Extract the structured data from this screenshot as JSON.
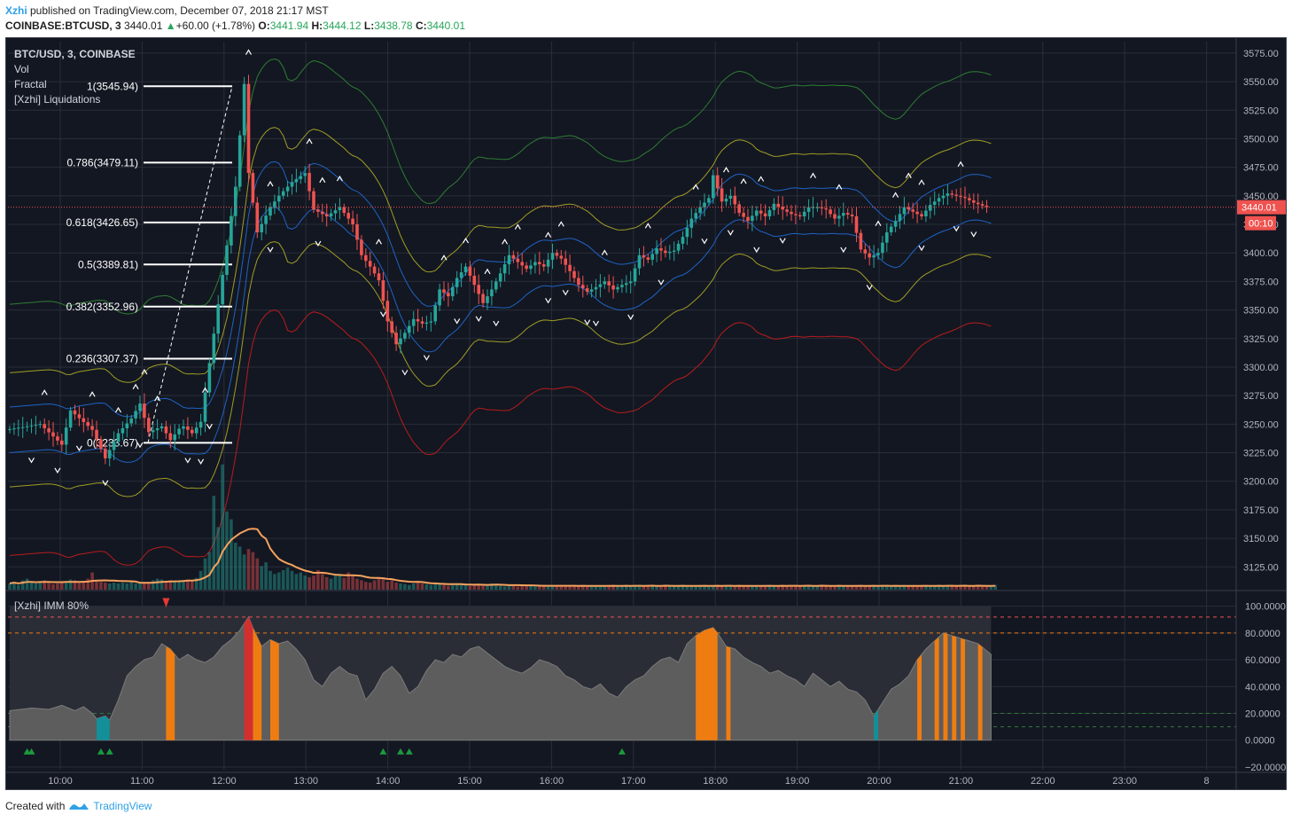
{
  "header": {
    "user": "Xzhi",
    "published_text": " published on TradingView.com, December 07, 2018 21:17 MST"
  },
  "symbol_bar": {
    "symbol": "COINBASE:BTCUSD, 3",
    "last": "3440.01",
    "change": "+60.00 (+1.78%)",
    "o_label": "O:",
    "o_value": "3441.94",
    "h_label": "H:",
    "h_value": "3444.12",
    "l_label": "L:",
    "l_value": "3438.78",
    "c_label": "C:",
    "c_value": "3440.01"
  },
  "legend": {
    "title": "BTC/USD, 3, COINBASE",
    "items": [
      "Vol",
      "Fractal",
      "[Xzhi] Liquidations"
    ]
  },
  "indicator_label": "[Xzhi] IMM 80%",
  "footer": {
    "created_with": "Created with",
    "brand": "TradingView"
  },
  "colors": {
    "background": "#131722",
    "up_candle": "#26a69a",
    "down_candle": "#ef5350",
    "outer_band_upper": "#2e7d32",
    "outer_band_lower": "#b71c1c",
    "middle_band": "#9e9d24",
    "inner_band": "#1e63c4",
    "volume_ma": "#f5a25d",
    "imm_fill": "#5d5d5d",
    "imm_high": "#ef7c11",
    "imm_extreme": "#d32f2f",
    "imm_low": "#138f9a"
  },
  "chart_data": [
    {
      "type": "candlestick",
      "title": "BTC/USD, 3, COINBASE",
      "ylim": [
        3105,
        3585
      ],
      "y_ticks": [
        3125,
        3150,
        3175,
        3200,
        3225,
        3250,
        3275,
        3300,
        3325,
        3350,
        3375,
        3400,
        3425,
        3450,
        3475,
        3500,
        3525,
        3550,
        3575
      ],
      "y_tick_labels": [
        "3125.00",
        "3150.00",
        "3175.00",
        "3200.00",
        "3225.00",
        "3250.00",
        "3275.00",
        "3300.00",
        "3325.00",
        "3350.00",
        "3375.00",
        "3400.00",
        "3425.00",
        "3450.00",
        "3475.00",
        "3500.00",
        "3525.00",
        "3550.00",
        "3575.00"
      ],
      "x_tick_labels": [
        "10:00",
        "11:00",
        "12:00",
        "13:00",
        "14:00",
        "15:00",
        "16:00",
        "17:00",
        "18:00",
        "19:00",
        "20:00",
        "21:00",
        "22:00",
        "23:00",
        "8"
      ],
      "last_price": 3440.01,
      "last_price_label": "3440.01",
      "countdown_label": "00:10",
      "fib_levels": [
        {
          "label": "1(3545.94)",
          "price": 3545.94
        },
        {
          "label": "0.786(3479.11)",
          "price": 3479.11
        },
        {
          "label": "0.618(3426.65)",
          "price": 3426.65
        },
        {
          "label": "0.5(3389.81)",
          "price": 3389.81
        },
        {
          "label": "0.382(3352.96)",
          "price": 3352.96
        },
        {
          "label": "0.236(3307.37)",
          "price": 3307.37
        },
        {
          "label": "0(3233.67)",
          "price": 3233.67
        }
      ],
      "price_path": [
        [
          0,
          3245
        ],
        [
          8,
          3250
        ],
        [
          13,
          3232
        ],
        [
          15,
          3262
        ],
        [
          20,
          3245
        ],
        [
          23,
          3220
        ],
        [
          26,
          3242
        ],
        [
          29,
          3255
        ],
        [
          31,
          3268
        ],
        [
          33,
          3243
        ],
        [
          36,
          3248
        ],
        [
          38,
          3236
        ],
        [
          40,
          3246
        ],
        [
          41,
          3248
        ],
        [
          43,
          3242
        ],
        [
          45,
          3252
        ],
        [
          53,
          3458
        ],
        [
          55,
          3548
        ],
        [
          56,
          3470
        ],
        [
          58,
          3418
        ],
        [
          61,
          3440
        ],
        [
          63,
          3450
        ],
        [
          66,
          3462
        ],
        [
          69,
          3470
        ],
        [
          71,
          3438
        ],
        [
          74,
          3432
        ],
        [
          77,
          3440
        ],
        [
          80,
          3425
        ],
        [
          82,
          3398
        ],
        [
          84,
          3388
        ],
        [
          86,
          3376
        ],
        [
          88,
          3340
        ],
        [
          90,
          3320
        ],
        [
          92,
          3330
        ],
        [
          94,
          3342
        ],
        [
          96,
          3338
        ],
        [
          98,
          3340
        ],
        [
          100,
          3368
        ],
        [
          102,
          3362
        ],
        [
          104,
          3378
        ],
        [
          106,
          3388
        ],
        [
          108,
          3372
        ],
        [
          110,
          3356
        ],
        [
          112,
          3368
        ],
        [
          114,
          3382
        ],
        [
          116,
          3398
        ],
        [
          118,
          3392
        ],
        [
          120,
          3386
        ],
        [
          122,
          3392
        ],
        [
          124,
          3388
        ],
        [
          126,
          3400
        ],
        [
          128,
          3395
        ],
        [
          130,
          3384
        ],
        [
          132,
          3372
        ],
        [
          134,
          3366
        ],
        [
          136,
          3370
        ],
        [
          138,
          3375
        ],
        [
          140,
          3368
        ],
        [
          142,
          3372
        ],
        [
          144,
          3375
        ],
        [
          146,
          3398
        ],
        [
          148,
          3394
        ],
        [
          150,
          3404
        ],
        [
          152,
          3400
        ],
        [
          154,
          3402
        ],
        [
          156,
          3414
        ],
        [
          158,
          3430
        ],
        [
          160,
          3440
        ],
        [
          162,
          3448
        ],
        [
          163,
          3468
        ],
        [
          165,
          3445
        ],
        [
          167,
          3450
        ],
        [
          169,
          3435
        ],
        [
          171,
          3428
        ],
        [
          173,
          3437
        ],
        [
          175,
          3432
        ],
        [
          177,
          3443
        ],
        [
          179,
          3438
        ],
        [
          181,
          3434
        ],
        [
          183,
          3432
        ],
        [
          185,
          3440
        ],
        [
          187,
          3440
        ],
        [
          189,
          3438
        ],
        [
          191,
          3430
        ],
        [
          193,
          3435
        ],
        [
          195,
          3432
        ],
        [
          197,
          3403
        ],
        [
          199,
          3396
        ],
        [
          201,
          3400
        ],
        [
          203,
          3418
        ],
        [
          205,
          3428
        ],
        [
          207,
          3440
        ],
        [
          209,
          3436
        ],
        [
          211,
          3432
        ],
        [
          213,
          3442
        ],
        [
          215,
          3448
        ],
        [
          217,
          3452
        ],
        [
          219,
          3450
        ],
        [
          221,
          3448
        ],
        [
          223,
          3444
        ],
        [
          226,
          3440.01
        ]
      ],
      "fractals": {
        "up_bars": [
          8,
          19,
          25,
          29,
          31,
          34,
          45,
          55,
          60,
          69,
          72,
          76,
          85,
          100,
          105,
          110,
          114,
          117,
          124,
          127,
          137,
          147,
          158,
          165,
          169,
          173,
          185,
          191,
          200,
          204,
          207,
          210,
          219
        ],
        "down_bars": [
          5,
          11,
          16,
          22,
          30,
          41,
          44,
          46,
          60,
          71,
          86,
          91,
          96,
          103,
          108,
          112,
          124,
          128,
          133,
          135,
          143,
          150,
          160,
          166,
          172,
          178,
          192,
          198,
          210,
          218,
          222
        ]
      },
      "volume": {
        "values": [
          8,
          10,
          6,
          12,
          14,
          9,
          8,
          11,
          12,
          9,
          7,
          8,
          10,
          9,
          13,
          12,
          9,
          11,
          14,
          22,
          12,
          10,
          9,
          8,
          9,
          8,
          9,
          8,
          10,
          8,
          8,
          9,
          10,
          12,
          14,
          13,
          11,
          12,
          10,
          11,
          12,
          13,
          11,
          15,
          24,
          40,
          48,
          120,
          80,
          160,
          100,
          90,
          60,
          55,
          45,
          52,
          48,
          40,
          30,
          35,
          24,
          20,
          22,
          25,
          28,
          24,
          20,
          22,
          18,
          16,
          18,
          25,
          20,
          16,
          14,
          18,
          20,
          15,
          22,
          18,
          14,
          12,
          10,
          9,
          12,
          15,
          14,
          10,
          12,
          9,
          8,
          7,
          6,
          8,
          10,
          8,
          7,
          6,
          8,
          7,
          6,
          5,
          6,
          7,
          8,
          6,
          5,
          6,
          7,
          5,
          6,
          8,
          7,
          5,
          4,
          5,
          6,
          4,
          5,
          6,
          5,
          4,
          5,
          6,
          5,
          4,
          5,
          6,
          4,
          5,
          6,
          4,
          5,
          4,
          6,
          5,
          4,
          5,
          6,
          5,
          4,
          5,
          6,
          4,
          5,
          6,
          4,
          5,
          6,
          4,
          5,
          6,
          4,
          5,
          4,
          6,
          5,
          4,
          5,
          6,
          5,
          4,
          5,
          6,
          4,
          5,
          6,
          4,
          5,
          4,
          6,
          5,
          4,
          5,
          6,
          5,
          4,
          5,
          6,
          4,
          5,
          6,
          4,
          5,
          6,
          4,
          5,
          6,
          4,
          5,
          4,
          6,
          5,
          4,
          5,
          6,
          5,
          4,
          5,
          6,
          4,
          5,
          6,
          4,
          5,
          4,
          6,
          5,
          4,
          5,
          6,
          5,
          4,
          5,
          6,
          4,
          5,
          6,
          4,
          5,
          6,
          4,
          5,
          6,
          4,
          5,
          4,
          6
        ]
      }
    },
    {
      "type": "area",
      "title": "[Xzhi] IMM 80%",
      "ylim": [
        -22,
        107
      ],
      "y_ticks": [
        -20,
        0,
        20,
        40,
        60,
        80,
        100
      ],
      "y_tick_labels": [
        "−20.0000",
        "0.0000",
        "20.0000",
        "40.0000",
        "60.0000",
        "80.0000",
        "100.0000"
      ],
      "upper_threshold": 80,
      "lower_threshold": 20,
      "values": [
        [
          0,
          22
        ],
        [
          5,
          24
        ],
        [
          9,
          23
        ],
        [
          12,
          26
        ],
        [
          15,
          22
        ],
        [
          17,
          25
        ],
        [
          19,
          20
        ],
        [
          20,
          16
        ],
        [
          22,
          18
        ],
        [
          23,
          15
        ],
        [
          25,
          30
        ],
        [
          27,
          48
        ],
        [
          29,
          55
        ],
        [
          31,
          60
        ],
        [
          33,
          62
        ],
        [
          35,
          72
        ],
        [
          37,
          68
        ],
        [
          39,
          60
        ],
        [
          41,
          64
        ],
        [
          43,
          60
        ],
        [
          45,
          58
        ],
        [
          47,
          62
        ],
        [
          49,
          70
        ],
        [
          51,
          75
        ],
        [
          53,
          82
        ],
        [
          55,
          92
        ],
        [
          56,
          84
        ],
        [
          58,
          70
        ],
        [
          60,
          75
        ],
        [
          62,
          72
        ],
        [
          64,
          74
        ],
        [
          66,
          68
        ],
        [
          68,
          60
        ],
        [
          70,
          45
        ],
        [
          72,
          40
        ],
        [
          74,
          50
        ],
        [
          76,
          55
        ],
        [
          78,
          50
        ],
        [
          80,
          48
        ],
        [
          82,
          30
        ],
        [
          84,
          38
        ],
        [
          86,
          50
        ],
        [
          88,
          55
        ],
        [
          90,
          48
        ],
        [
          92,
          35
        ],
        [
          94,
          40
        ],
        [
          96,
          52
        ],
        [
          98,
          60
        ],
        [
          100,
          58
        ],
        [
          102,
          64
        ],
        [
          104,
          62
        ],
        [
          106,
          68
        ],
        [
          108,
          70
        ],
        [
          110,
          65
        ],
        [
          112,
          60
        ],
        [
          114,
          55
        ],
        [
          116,
          52
        ],
        [
          118,
          50
        ],
        [
          120,
          54
        ],
        [
          122,
          60
        ],
        [
          124,
          58
        ],
        [
          126,
          55
        ],
        [
          128,
          48
        ],
        [
          130,
          45
        ],
        [
          132,
          40
        ],
        [
          134,
          38
        ],
        [
          136,
          42
        ],
        [
          138,
          35
        ],
        [
          140,
          32
        ],
        [
          142,
          40
        ],
        [
          144,
          45
        ],
        [
          146,
          48
        ],
        [
          148,
          55
        ],
        [
          150,
          60
        ],
        [
          152,
          62
        ],
        [
          154,
          58
        ],
        [
          156,
          72
        ],
        [
          158,
          78
        ],
        [
          160,
          82
        ],
        [
          162,
          84
        ],
        [
          163,
          80
        ],
        [
          165,
          70
        ],
        [
          167,
          68
        ],
        [
          169,
          62
        ],
        [
          171,
          58
        ],
        [
          173,
          55
        ],
        [
          175,
          50
        ],
        [
          177,
          52
        ],
        [
          179,
          48
        ],
        [
          181,
          45
        ],
        [
          183,
          40
        ],
        [
          185,
          50
        ],
        [
          187,
          45
        ],
        [
          189,
          40
        ],
        [
          191,
          44
        ],
        [
          193,
          38
        ],
        [
          195,
          36
        ],
        [
          197,
          30
        ],
        [
          199,
          18
        ],
        [
          201,
          28
        ],
        [
          203,
          38
        ],
        [
          205,
          42
        ],
        [
          207,
          48
        ],
        [
          209,
          60
        ],
        [
          211,
          68
        ],
        [
          213,
          74
        ],
        [
          215,
          80
        ],
        [
          217,
          78
        ],
        [
          219,
          76
        ],
        [
          221,
          74
        ],
        [
          223,
          72
        ],
        [
          226,
          64
        ]
      ],
      "high_zones": [
        [
          36,
          38
        ],
        [
          56,
          58
        ],
        [
          60,
          62
        ],
        [
          158,
          163
        ],
        [
          165,
          166
        ],
        [
          209,
          210
        ],
        [
          213,
          214
        ],
        [
          215,
          216
        ],
        [
          217,
          218
        ],
        [
          219,
          220
        ],
        [
          223,
          224
        ]
      ],
      "extreme_zones": [
        [
          54,
          56
        ]
      ],
      "low_zones": [
        [
          20,
          23
        ],
        [
          199,
          200
        ]
      ],
      "signals_up": [
        4,
        5,
        21,
        23,
        86,
        90,
        92,
        141
      ]
    }
  ]
}
